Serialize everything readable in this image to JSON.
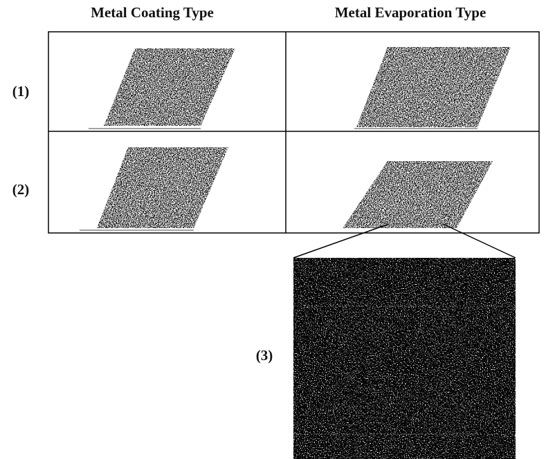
{
  "header": {
    "columns": [
      "Metal Coating Type",
      "Metal Evaporation Type"
    ]
  },
  "rows": [
    "(1)",
    "(2)"
  ],
  "inset": {
    "label": "(3)"
  }
}
